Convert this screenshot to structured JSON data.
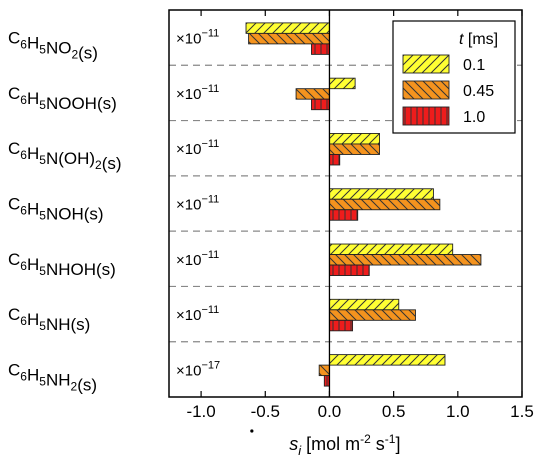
{
  "chart_data": {
    "type": "bar",
    "orientation": "horizontal",
    "categories": [
      {
        "base": "C",
        "sub1": "6",
        "mid": "H",
        "sub2": "5",
        "rest": [
          {
            "t": "NO",
            "sub": false
          },
          {
            "t": "2",
            "sub": true
          },
          {
            "t": "(s)",
            "sub": false
          }
        ],
        "multiplier": "×10",
        "exponent": "−11"
      },
      {
        "base": "C",
        "sub1": "6",
        "mid": "H",
        "sub2": "5",
        "rest": [
          {
            "t": "NOOH(s)",
            "sub": false
          }
        ],
        "multiplier": "×10",
        "exponent": "−11"
      },
      {
        "base": "C",
        "sub1": "6",
        "mid": "H",
        "sub2": "5",
        "rest": [
          {
            "t": "N(OH)",
            "sub": false
          },
          {
            "t": "2",
            "sub": true
          },
          {
            "t": "(s)",
            "sub": false
          }
        ],
        "multiplier": "×10",
        "exponent": "−11"
      },
      {
        "base": "C",
        "sub1": "6",
        "mid": "H",
        "sub2": "5",
        "rest": [
          {
            "t": "NOH(s)",
            "sub": false
          }
        ],
        "multiplier": "×10",
        "exponent": "−11"
      },
      {
        "base": "C",
        "sub1": "6",
        "mid": "H",
        "sub2": "5",
        "rest": [
          {
            "t": "NHOH(s)",
            "sub": false
          }
        ],
        "multiplier": "×10",
        "exponent": "−11"
      },
      {
        "base": "C",
        "sub1": "6",
        "mid": "H",
        "sub2": "5",
        "rest": [
          {
            "t": "NH(s)",
            "sub": false
          }
        ],
        "multiplier": "×10",
        "exponent": "−11"
      },
      {
        "base": "C",
        "sub1": "6",
        "mid": "H",
        "sub2": "5",
        "rest": [
          {
            "t": "NH",
            "sub": false
          },
          {
            "t": "2",
            "sub": true
          },
          {
            "t": "(s)",
            "sub": false
          }
        ],
        "multiplier": "×10",
        "exponent": "−17"
      }
    ],
    "series": [
      {
        "name": "0.1",
        "color": "#ffff33",
        "hatch": "diag-right",
        "values": [
          -0.65,
          0.2,
          0.39,
          0.81,
          0.96,
          0.54,
          0.9
        ]
      },
      {
        "name": "0.45",
        "color": "#f4931e",
        "hatch": "diag-left",
        "values": [
          -0.63,
          -0.26,
          0.39,
          0.86,
          1.18,
          0.67,
          -0.08
        ]
      },
      {
        "name": "1.0",
        "color": "#ee1c1c",
        "hatch": "vertical",
        "values": [
          -0.14,
          -0.14,
          0.08,
          0.22,
          0.31,
          0.18,
          -0.04
        ]
      }
    ],
    "legend_title": {
      "italic": "t",
      "rest": " [ms]"
    },
    "legend_position": "top-right",
    "xlim": [
      -1.25,
      1.5
    ],
    "xticks": [
      "-1.0",
      "-0.5",
      "0.0",
      "0.5",
      "1.0",
      "1.5"
    ],
    "xtick_values": [
      -1.0,
      -0.5,
      0.0,
      0.5,
      1.0,
      1.5
    ],
    "xlabel": {
      "symbol": "s",
      "sub": "i",
      "units": " [mol m",
      "exp1": "-2",
      "mid": " s",
      "exp2": "-1",
      "end": "]"
    },
    "grid": false,
    "separators": "dashed"
  }
}
